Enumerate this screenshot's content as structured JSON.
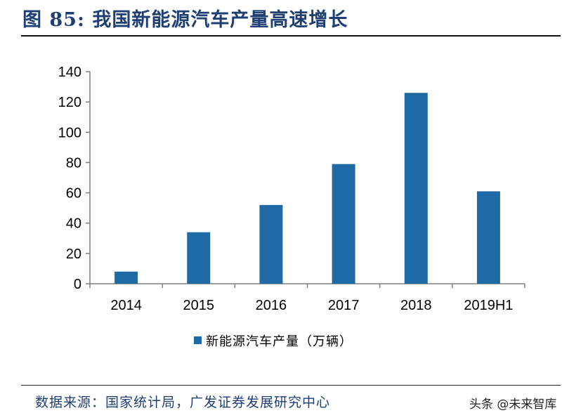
{
  "header": {
    "title": "图 85: 我国新能源汽车产量高速增长"
  },
  "footer": {
    "source": "数据来源：国家统计局，广发证券发展研究中心",
    "watermark": "头条 @未来智库"
  },
  "colors": {
    "bar": "#1f6aa5",
    "title": "#1f3f73",
    "axis": "#7f7f7f"
  },
  "chart_data": {
    "type": "bar",
    "categories": [
      "2014",
      "2015",
      "2016",
      "2017",
      "2018",
      "2019H1"
    ],
    "series": [
      {
        "name": "新能源汽车产量（万辆）",
        "values": [
          8,
          34,
          52,
          79,
          126,
          61
        ]
      }
    ],
    "ylim": [
      0,
      140
    ],
    "yticks": [
      0,
      20,
      40,
      60,
      80,
      100,
      120,
      140
    ],
    "grid": false,
    "legend_position": "bottom"
  }
}
